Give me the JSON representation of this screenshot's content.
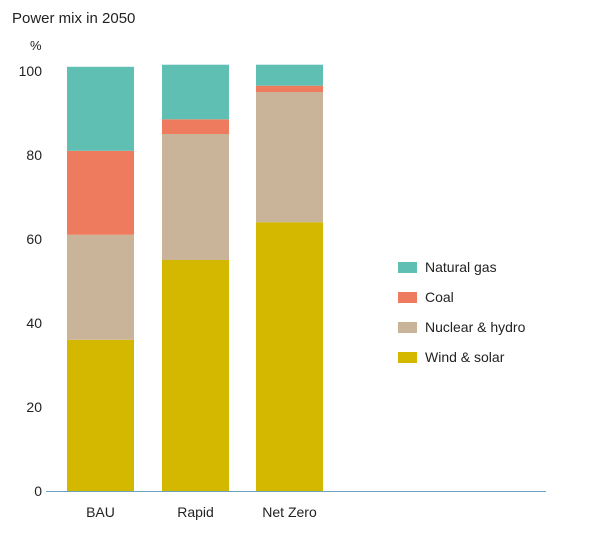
{
  "chart_data": {
    "type": "bar",
    "stacked": true,
    "title": "Power mix in 2050",
    "ylabel": "%",
    "xlabel": "",
    "categories": [
      "BAU",
      "Rapid",
      "Net Zero"
    ],
    "ylim": [
      0,
      100
    ],
    "yticks": [
      0,
      20,
      40,
      60,
      80,
      100
    ],
    "grid": false,
    "legend_position": "right",
    "series": [
      {
        "name": "Wind & solar",
        "color": "#d4b800",
        "values": [
          36,
          55,
          64
        ]
      },
      {
        "name": "Nuclear & hydro",
        "color": "#c9b49a",
        "values": [
          25,
          30,
          31
        ]
      },
      {
        "name": "Coal",
        "color": "#ef7b5e",
        "values": [
          20,
          3.5,
          1.5
        ]
      },
      {
        "name": "Natural gas",
        "color": "#5fbfb3",
        "values": [
          20,
          13,
          5
        ]
      }
    ],
    "legend_order": [
      "Natural gas",
      "Coal",
      "Nuclear & hydro",
      "Wind & solar"
    ]
  }
}
